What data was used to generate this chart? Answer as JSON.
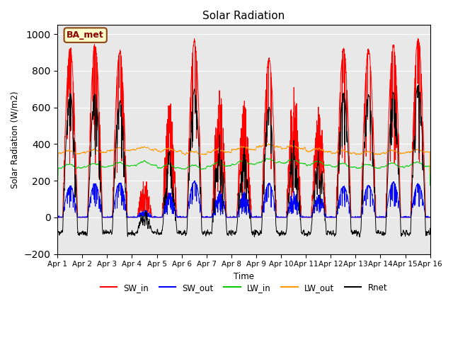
{
  "title": "Solar Radiation",
  "ylabel": "Solar Radiation (W/m2)",
  "xlabel": "Time",
  "annotation": "BA_met",
  "ylim": [
    -200,
    1050
  ],
  "x_labels": [
    "Apr 1",
    "Apr 2",
    "Apr 3",
    "Apr 4",
    "Apr 5",
    "Apr 6",
    "Apr 7",
    "Apr 8",
    "Apr 9",
    "Apr 10",
    "Apr 11",
    "Apr 12",
    "Apr 13",
    "Apr 14",
    "Apr 15",
    "Apr 16"
  ],
  "colors": {
    "SW_in": "#ff0000",
    "SW_out": "#0000ff",
    "LW_in": "#00cc00",
    "LW_out": "#ff9900",
    "Rnet": "#000000"
  },
  "background_color": "#e8e8e8",
  "n_days": 15,
  "pts_per_day": 144,
  "sw_in_peaks": [
    920,
    940,
    905,
    210,
    640,
    960,
    750,
    635,
    860,
    740,
    625,
    920,
    910,
    940,
    975
  ],
  "sw_out_ratio": 0.2,
  "lw_in_base": [
    270,
    275,
    280,
    285,
    270,
    265,
    280,
    290,
    300,
    295,
    285,
    275,
    270,
    275,
    280
  ],
  "lw_out_base": [
    350,
    355,
    365,
    370,
    360,
    345,
    355,
    370,
    385,
    375,
    360,
    350,
    345,
    350,
    355
  ],
  "night_rnet": -85
}
